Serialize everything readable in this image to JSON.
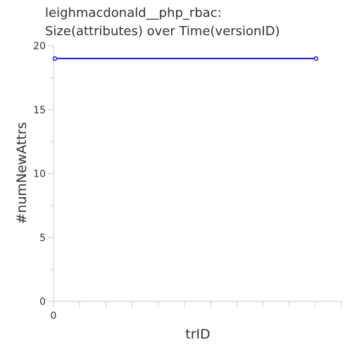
{
  "chart_data": {
    "type": "line",
    "title_line1": "leighmacdonald__php_rbac:",
    "title_line2": "Size(attributes) over Time(versionID)",
    "xlabel": "trID",
    "ylabel": "#numNewAttrs",
    "ylim": [
      0,
      20
    ],
    "y_ticks": [
      "0",
      "5",
      "10",
      "15",
      "20"
    ],
    "x_ticks": [
      "0"
    ],
    "grid": false,
    "series": [
      {
        "x": [
          0,
          1
        ],
        "y": [
          19,
          19
        ]
      }
    ],
    "series_color": "#1a1ad8"
  }
}
